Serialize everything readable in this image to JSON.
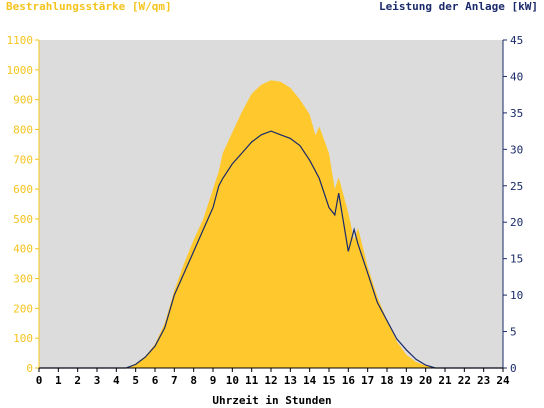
{
  "chart_data": {
    "type": "area",
    "ylabel_left": "Bestrahlungsstärke [W/qm]",
    "ylabel_right": "Leistung der Anlage [kW]",
    "xlabel": "Uhrzeit in Stunden",
    "xlim": [
      0,
      24
    ],
    "ylim_left": [
      0,
      1100
    ],
    "ylim_right": [
      0,
      45
    ],
    "x_ticks": [
      0,
      1,
      2,
      3,
      4,
      5,
      6,
      7,
      8,
      9,
      10,
      11,
      12,
      13,
      14,
      15,
      16,
      17,
      18,
      19,
      20,
      21,
      22,
      23,
      24
    ],
    "y_ticks_left": [
      0,
      100,
      200,
      300,
      400,
      500,
      600,
      700,
      800,
      900,
      1000,
      1100
    ],
    "y_ticks_right": [
      0,
      5,
      10,
      15,
      20,
      25,
      30,
      35,
      40,
      45
    ],
    "grid": false,
    "colors": {
      "irradiance": "#ffc82d",
      "power": "#1a2a6a",
      "background": "#dcdcdc",
      "left_axis": "#f5c41e",
      "right_axis": "#1a2a6a"
    },
    "series": [
      {
        "name": "Bestrahlungsstärke [W/qm]",
        "axis": "left",
        "x": [
          0,
          4.5,
          5,
          5.5,
          6,
          6.5,
          7,
          7.5,
          8,
          8.5,
          9,
          9.3,
          9.5,
          10,
          10.5,
          11,
          11.5,
          12,
          12.5,
          13,
          13.5,
          14,
          14.3,
          14.5,
          15,
          15.3,
          15.5,
          16,
          16.3,
          16.5,
          17,
          17.5,
          18,
          18.5,
          19,
          19.5,
          20,
          20.5,
          21,
          24
        ],
        "values": [
          0,
          0,
          15,
          40,
          80,
          150,
          260,
          350,
          430,
          500,
          600,
          660,
          720,
          790,
          860,
          920,
          950,
          965,
          960,
          940,
          900,
          850,
          780,
          810,
          720,
          600,
          640,
          520,
          430,
          470,
          340,
          240,
          160,
          90,
          45,
          20,
          8,
          0,
          0,
          0
        ]
      },
      {
        "name": "Leistung der Anlage [kW]",
        "axis": "right",
        "x": [
          0,
          4.5,
          5,
          5.5,
          6,
          6.5,
          7,
          7.5,
          8,
          8.5,
          9,
          9.3,
          9.5,
          10,
          10.5,
          11,
          11.5,
          12,
          12.5,
          13,
          13.5,
          14,
          14.3,
          14.5,
          15,
          15.3,
          15.5,
          16,
          16.3,
          16.5,
          17,
          17.5,
          18,
          18.5,
          19,
          19.5,
          20,
          20.5,
          21,
          24
        ],
        "values": [
          0,
          0,
          0.5,
          1.5,
          3,
          5.5,
          10,
          13,
          16,
          19,
          22,
          25,
          26,
          28,
          29.5,
          31,
          32,
          32.5,
          32,
          31.5,
          30.5,
          28.5,
          27,
          26,
          22,
          21,
          24,
          16,
          19,
          17,
          13,
          9,
          6.5,
          4,
          2.5,
          1.2,
          0.4,
          0,
          0,
          0
        ]
      }
    ]
  }
}
